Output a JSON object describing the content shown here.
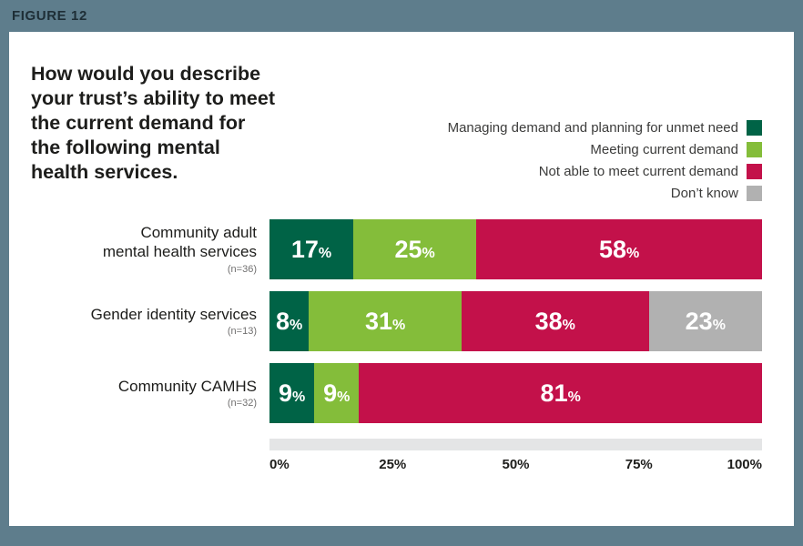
{
  "figure": {
    "label": "FIGURE 12"
  },
  "colors": {
    "frame": "#5e7d8c",
    "panel": "#ffffff",
    "dark_green": "#006346",
    "light_green": "#84bd3a",
    "crimson": "#c3114a",
    "gray": "#b1b1b1",
    "axis_track": "#e4e5e6",
    "value_text": "#ffffff"
  },
  "chart_data": {
    "type": "bar",
    "orientation": "horizontal",
    "stacked": true,
    "title": "How would you describe\nyour trust’s ability to meet\nthe current demand for\nthe following mental\nhealth services.",
    "legend": [
      {
        "label": "Managing demand and planning for unmet need",
        "color": "#006346"
      },
      {
        "label": "Meeting current demand",
        "color": "#84bd3a"
      },
      {
        "label": "Not able to meet current demand",
        "color": "#c3114a"
      },
      {
        "label": "Don’t know",
        "color": "#b1b1b1"
      }
    ],
    "legend_position": "top-right",
    "categories": [
      {
        "label": "Community adult\nmental health services",
        "sample": "(n=36)",
        "values": [
          17,
          25,
          58,
          0
        ]
      },
      {
        "label": "Gender identity services",
        "sample": "(n=13)",
        "values": [
          8,
          31,
          38,
          23
        ]
      },
      {
        "label": "Community CAMHS",
        "sample": "(n=32)",
        "values": [
          9,
          9,
          81,
          0
        ]
      }
    ],
    "value_suffix": "%",
    "x_ticks": [
      "0%",
      "25%",
      "50%",
      "75%",
      "100%"
    ],
    "xlim": [
      0,
      100
    ],
    "grid": false
  }
}
